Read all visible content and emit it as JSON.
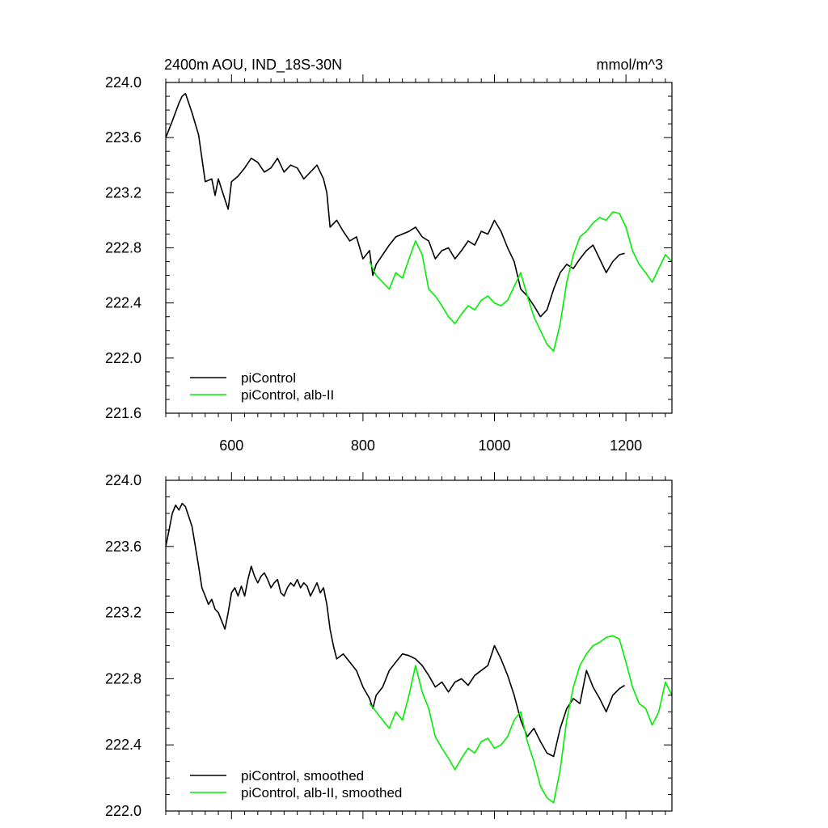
{
  "colors": {
    "control": "#000000",
    "alb": "#00ee00"
  },
  "chart_data": [
    {
      "type": "line",
      "title": "2400m AOU, IND_18S-30N",
      "units": "mmol/m^3",
      "xlim": [
        500,
        1270
      ],
      "ylim": [
        221.6,
        224.0
      ],
      "x_ticks": [
        600,
        800,
        1000,
        1200
      ],
      "y_ticks": [
        221.6,
        222.0,
        222.4,
        222.8,
        223.2,
        223.6,
        224.0
      ],
      "x_tick_labels": [
        "600",
        "800",
        "1000",
        "1200"
      ],
      "y_tick_labels": [
        "221.6",
        "222.0",
        "222.4",
        "222.8",
        "223.2",
        "223.6",
        "224.0"
      ],
      "legend": [
        "piControl",
        "piControl, alb-II"
      ],
      "series": [
        {
          "name": "piControl",
          "color": "#000000",
          "x": [
            500,
            510,
            520,
            525,
            530,
            540,
            550,
            555,
            560,
            570,
            575,
            580,
            590,
            595,
            600,
            610,
            620,
            630,
            640,
            650,
            660,
            670,
            680,
            690,
            700,
            710,
            720,
            730,
            740,
            745,
            750,
            760,
            770,
            780,
            790,
            800,
            810,
            815,
            820,
            830,
            840,
            850,
            860,
            870,
            880,
            890,
            900,
            910,
            920,
            930,
            940,
            950,
            960,
            970,
            980,
            990,
            1000,
            1010,
            1020,
            1030,
            1040,
            1050,
            1060,
            1070,
            1080,
            1090,
            1100,
            1110,
            1120,
            1130,
            1140,
            1150,
            1160,
            1170,
            1180,
            1190,
            1198
          ],
          "y": [
            223.6,
            223.72,
            223.85,
            223.9,
            223.92,
            223.78,
            223.62,
            223.45,
            223.28,
            223.3,
            223.18,
            223.3,
            223.15,
            223.08,
            223.28,
            223.32,
            223.38,
            223.45,
            223.42,
            223.35,
            223.38,
            223.45,
            223.35,
            223.4,
            223.38,
            223.3,
            223.35,
            223.4,
            223.3,
            223.2,
            222.95,
            223.0,
            222.92,
            222.85,
            222.88,
            222.72,
            222.78,
            222.6,
            222.68,
            222.75,
            222.82,
            222.88,
            222.9,
            222.92,
            222.95,
            222.88,
            222.85,
            222.72,
            222.78,
            222.8,
            222.72,
            222.78,
            222.85,
            222.82,
            222.92,
            222.9,
            223.0,
            222.92,
            222.8,
            222.7,
            222.5,
            222.45,
            222.38,
            222.3,
            222.35,
            222.5,
            222.62,
            222.68,
            222.65,
            222.72,
            222.78,
            222.82,
            222.72,
            222.62,
            222.7,
            222.75,
            222.76
          ]
        },
        {
          "name": "piControl, alb-II",
          "color": "#00ee00",
          "x": [
            810,
            820,
            830,
            840,
            850,
            860,
            870,
            880,
            890,
            900,
            910,
            920,
            930,
            940,
            950,
            960,
            970,
            980,
            990,
            1000,
            1010,
            1020,
            1030,
            1040,
            1050,
            1060,
            1070,
            1080,
            1090,
            1100,
            1110,
            1120,
            1130,
            1140,
            1150,
            1160,
            1170,
            1180,
            1190,
            1200,
            1210,
            1220,
            1230,
            1240,
            1250,
            1260,
            1270
          ],
          "y": [
            222.7,
            222.6,
            222.55,
            222.5,
            222.62,
            222.58,
            222.72,
            222.85,
            222.75,
            222.5,
            222.45,
            222.38,
            222.3,
            222.25,
            222.32,
            222.38,
            222.35,
            222.42,
            222.45,
            222.4,
            222.38,
            222.42,
            222.52,
            222.62,
            222.45,
            222.3,
            222.2,
            222.1,
            222.05,
            222.25,
            222.55,
            222.75,
            222.88,
            222.92,
            222.98,
            223.02,
            223.0,
            223.06,
            223.05,
            222.95,
            222.78,
            222.68,
            222.62,
            222.55,
            222.65,
            222.75,
            222.7
          ]
        }
      ]
    },
    {
      "type": "line",
      "xlim": [
        500,
        1270
      ],
      "ylim": [
        222.0,
        224.0
      ],
      "x_ticks": [
        600,
        800,
        1000,
        1200
      ],
      "y_ticks": [
        222.0,
        222.4,
        222.8,
        223.2,
        223.6,
        224.0
      ],
      "y_tick_labels": [
        "222.0",
        "222.4",
        "222.8",
        "223.2",
        "223.6",
        "224.0"
      ],
      "legend": [
        "piControl, smoothed",
        "piControl, alb-II, smoothed"
      ],
      "series": [
        {
          "name": "piControl, smoothed",
          "color": "#000000",
          "x": [
            500,
            505,
            510,
            515,
            520,
            525,
            530,
            535,
            540,
            545,
            550,
            555,
            560,
            565,
            570,
            575,
            580,
            585,
            590,
            595,
            600,
            605,
            610,
            615,
            620,
            625,
            630,
            635,
            640,
            645,
            650,
            655,
            660,
            665,
            670,
            675,
            680,
            685,
            690,
            695,
            700,
            705,
            710,
            715,
            720,
            725,
            730,
            735,
            740,
            745,
            750,
            755,
            760,
            770,
            780,
            790,
            800,
            810,
            815,
            820,
            830,
            840,
            850,
            860,
            870,
            880,
            890,
            900,
            910,
            920,
            930,
            940,
            950,
            960,
            970,
            980,
            990,
            1000,
            1010,
            1020,
            1030,
            1040,
            1050,
            1060,
            1070,
            1080,
            1090,
            1100,
            1110,
            1120,
            1130,
            1140,
            1150,
            1160,
            1170,
            1180,
            1190,
            1198
          ],
          "y": [
            223.6,
            223.7,
            223.8,
            223.85,
            223.82,
            223.86,
            223.84,
            223.78,
            223.72,
            223.6,
            223.48,
            223.35,
            223.3,
            223.25,
            223.28,
            223.22,
            223.2,
            223.15,
            223.1,
            223.2,
            223.32,
            223.35,
            223.3,
            223.36,
            223.3,
            223.4,
            223.48,
            223.42,
            223.38,
            223.42,
            223.44,
            223.4,
            223.35,
            223.38,
            223.4,
            223.32,
            223.3,
            223.35,
            223.38,
            223.36,
            223.4,
            223.35,
            223.38,
            223.36,
            223.3,
            223.34,
            223.38,
            223.32,
            223.35,
            223.25,
            223.1,
            223.0,
            222.92,
            222.95,
            222.9,
            222.85,
            222.75,
            222.68,
            222.62,
            222.7,
            222.75,
            222.85,
            222.9,
            222.95,
            222.94,
            222.92,
            222.88,
            222.82,
            222.75,
            222.78,
            222.72,
            222.78,
            222.8,
            222.76,
            222.82,
            222.85,
            222.88,
            223.0,
            222.92,
            222.82,
            222.7,
            222.55,
            222.45,
            222.5,
            222.42,
            222.35,
            222.33,
            222.5,
            222.62,
            222.68,
            222.65,
            222.85,
            222.75,
            222.68,
            222.6,
            222.7,
            222.74,
            222.76
          ]
        },
        {
          "name": "piControl, alb-II, smoothed",
          "color": "#00ee00",
          "x": [
            810,
            820,
            830,
            840,
            850,
            860,
            870,
            880,
            890,
            900,
            910,
            920,
            930,
            940,
            950,
            960,
            970,
            980,
            990,
            1000,
            1010,
            1020,
            1030,
            1040,
            1050,
            1060,
            1070,
            1080,
            1090,
            1100,
            1110,
            1120,
            1130,
            1140,
            1150,
            1160,
            1170,
            1180,
            1190,
            1200,
            1210,
            1220,
            1230,
            1240,
            1250,
            1260,
            1270
          ],
          "y": [
            222.65,
            222.6,
            222.55,
            222.5,
            222.6,
            222.55,
            222.7,
            222.88,
            222.72,
            222.62,
            222.45,
            222.38,
            222.32,
            222.25,
            222.32,
            222.38,
            222.35,
            222.42,
            222.44,
            222.38,
            222.4,
            222.45,
            222.55,
            222.6,
            222.42,
            222.3,
            222.15,
            222.08,
            222.05,
            222.25,
            222.55,
            222.75,
            222.88,
            222.95,
            223.0,
            223.02,
            223.05,
            223.06,
            223.04,
            222.9,
            222.75,
            222.65,
            222.62,
            222.52,
            222.6,
            222.78,
            222.7
          ]
        }
      ]
    }
  ]
}
